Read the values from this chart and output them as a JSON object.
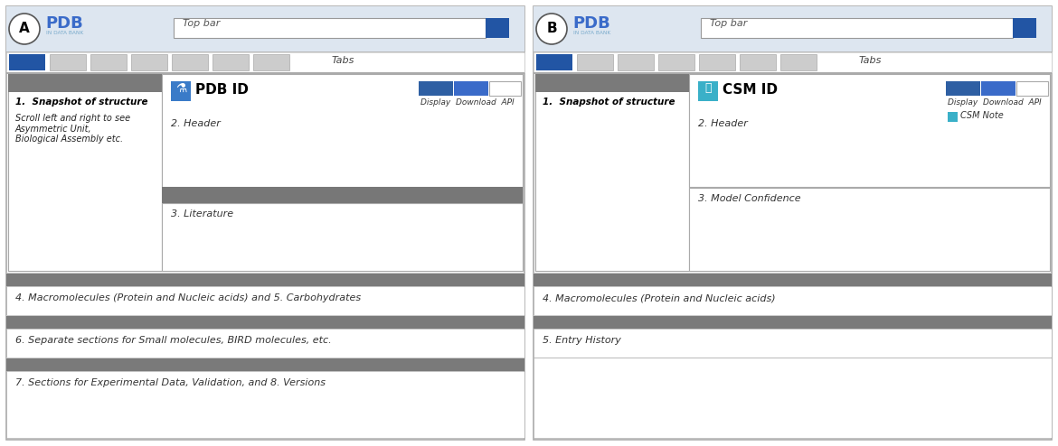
{
  "fig_width": 11.7,
  "fig_height": 4.94,
  "bg_color": "#ffffff",
  "panel_bg": "#dde6f0",
  "dark_blue": "#2255a4",
  "med_blue": "#3a6bc9",
  "cyan_blue": "#3ab0c8",
  "gray_bar": "#7a7a7a",
  "gray_divider": "#aaaaaa",
  "border_color": "#aaaaaa",
  "tab_gray": "#cccccc",
  "panel_A": {
    "label": "A",
    "logo_text": "PDB",
    "logo_sub": "IN DATA BANK",
    "topbar_text": "Top bar",
    "tabs_text": "Tabs",
    "section1_title": "1.  Snapshot of structure",
    "section1_body": "Scroll left and right to see\nAsymmetric Unit,\nBiological Assembly etc.",
    "header_title": "PDB ID",
    "sec2_text": "2. Header",
    "display_text": "Display  Download  API",
    "sec3_text": "3. Literature",
    "sec4_text": "4. Macromolecules (Protein and Nucleic acids) and 5. Carbohydrates",
    "sec6_text": "6. Separate sections for Small molecules, BIRD molecules, etc.",
    "sec7_text": "7. Sections for Experimental Data, Validation, and 8. Versions"
  },
  "panel_B": {
    "label": "B",
    "logo_text": "PDB",
    "logo_sub": "IN DATA BANK",
    "topbar_text": "Top bar",
    "tabs_text": "Tabs",
    "section1_title": "1.  Snapshot of structure",
    "header_title": "CSM ID",
    "sec2_text": "2. Header",
    "display_text": "Display  Download  API",
    "csm_note": "CSM Note",
    "sec3_text": "3. Model Confidence",
    "sec4_text": "4. Macromolecules (Protein and Nucleic acids)",
    "sec5_text": "5. Entry History"
  }
}
